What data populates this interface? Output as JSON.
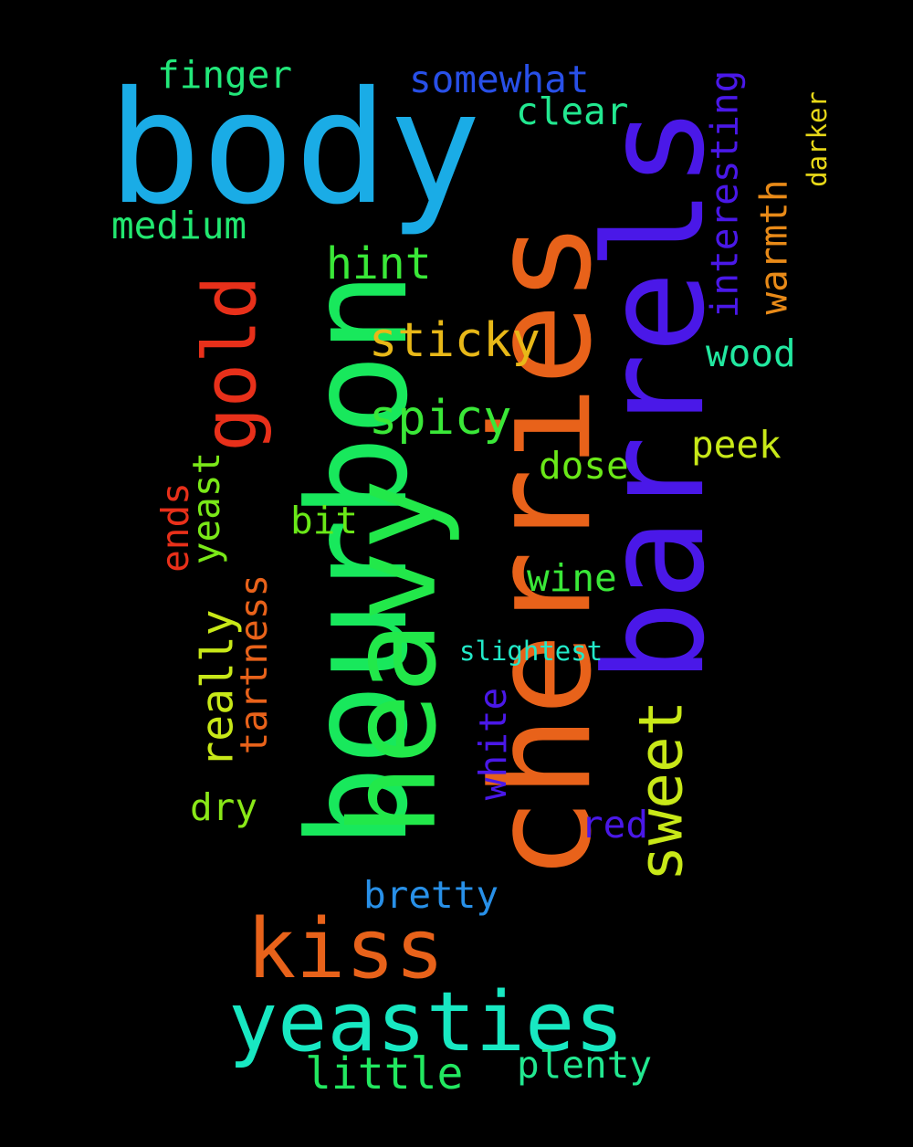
{
  "words": [
    {
      "text": "body",
      "color": "#1AACE6"
    },
    {
      "text": "cherries",
      "color": "#E8621A"
    },
    {
      "text": "barrels",
      "color": "#4A18E8"
    },
    {
      "text": "bourbon",
      "color": "#18E85C"
    },
    {
      "text": "heavy",
      "color": "#22E84A"
    },
    {
      "text": "kiss",
      "color": "#E8621A"
    },
    {
      "text": "yeasties",
      "color": "#18E8C2"
    },
    {
      "text": "gold",
      "color": "#E8301A"
    },
    {
      "text": "sweet",
      "color": "#C8E818"
    },
    {
      "text": "finger",
      "color": "#22E87A"
    },
    {
      "text": "somewhat",
      "color": "#2850E8"
    },
    {
      "text": "clear",
      "color": "#22E890"
    },
    {
      "text": "medium",
      "color": "#22E870"
    },
    {
      "text": "hint",
      "color": "#3AE838"
    },
    {
      "text": "sticky",
      "color": "#E8B818"
    },
    {
      "text": "spicy",
      "color": "#3AE838"
    },
    {
      "text": "wood",
      "color": "#22E8A0"
    },
    {
      "text": "peek",
      "color": "#C8E818"
    },
    {
      "text": "dose",
      "color": "#6AE818"
    },
    {
      "text": "bit",
      "color": "#6AE818"
    },
    {
      "text": "wine",
      "color": "#3AE838"
    },
    {
      "text": "slightest",
      "color": "#22E8C8"
    },
    {
      "text": "interesting",
      "color": "#4A18E8"
    },
    {
      "text": "warmth",
      "color": "#E88A18"
    },
    {
      "text": "darker",
      "color": "#E8D818"
    },
    {
      "text": "ends",
      "color": "#E8301A"
    },
    {
      "text": "yeast",
      "color": "#7AE818"
    },
    {
      "text": "really",
      "color": "#C8E818"
    },
    {
      "text": "tartness",
      "color": "#E8621A"
    },
    {
      "text": "white",
      "color": "#4A18E8"
    },
    {
      "text": "dry",
      "color": "#8AE818"
    },
    {
      "text": "red",
      "color": "#4A18E8"
    },
    {
      "text": "bretty",
      "color": "#2890E8"
    },
    {
      "text": "little",
      "color": "#22E860"
    },
    {
      "text": "plenty",
      "color": "#22E890"
    }
  ]
}
